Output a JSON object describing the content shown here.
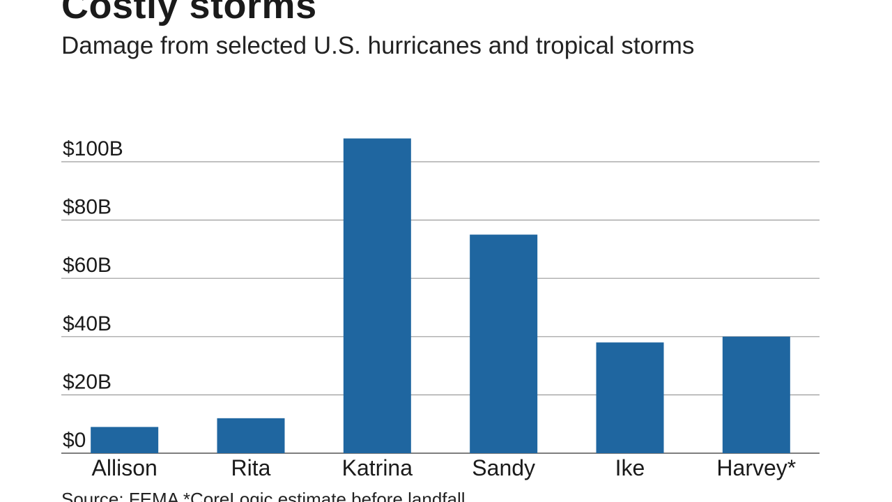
{
  "title": "Costly storms",
  "subtitle": "Damage from selected U.S. hurricanes and tropical storms",
  "source": "Source: FEMA *CoreLogic estimate before landfall",
  "colors": {
    "bar": "#1f66a0",
    "grid": "#9a9a9a",
    "grid_dark": "#111111",
    "axis": "#555555"
  },
  "chart_data": {
    "type": "bar",
    "categories": [
      "Allison",
      "Rita",
      "Katrina",
      "Sandy",
      "Ike",
      "Harvey*"
    ],
    "values": [
      9,
      12,
      108,
      75,
      38,
      40
    ],
    "title": "Costly storms",
    "subtitle": "Damage from selected U.S. hurricanes and tropical storms",
    "xlabel": "",
    "ylabel": "",
    "ylim": [
      0,
      100
    ],
    "yticks": [
      0,
      20,
      40,
      60,
      80,
      100
    ],
    "ytick_labels": [
      "$0",
      "$20B",
      "$40B",
      "$60B",
      "$80B",
      "$100B"
    ],
    "grid": true,
    "legend": "none"
  }
}
